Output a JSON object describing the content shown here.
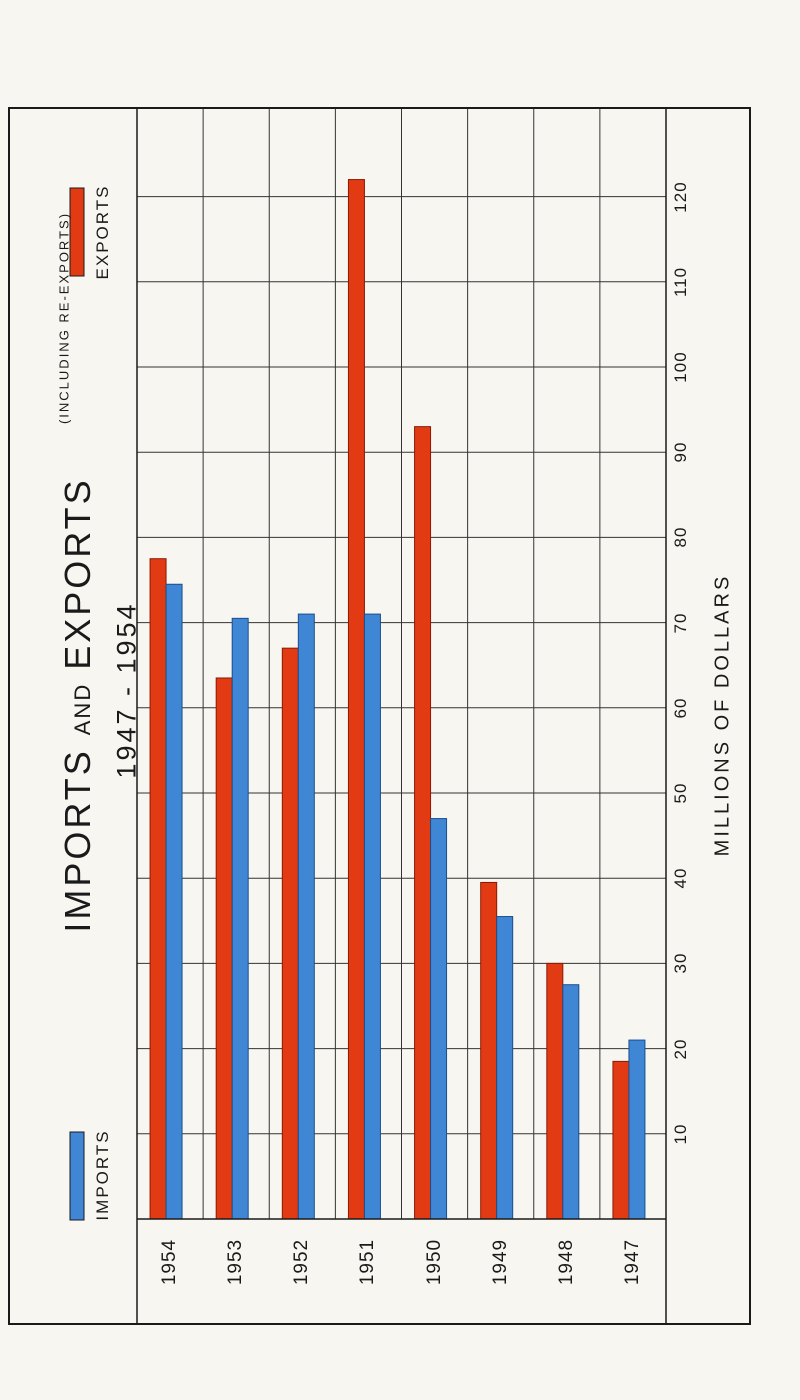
{
  "chart_data": {
    "type": "bar",
    "orientation": "horizontal",
    "title": {
      "main_a": "IMPORTS",
      "and": "AND",
      "main_b": "EXPORTS",
      "note": "(INCLUDING RE-EXPORTS)"
    },
    "subtitle": "1947 - 1954",
    "xlabel": "MILLIONS OF DOLLARS",
    "xlim": [
      0,
      125
    ],
    "ticks": [
      10,
      20,
      30,
      40,
      50,
      60,
      70,
      80,
      90,
      100,
      110,
      120
    ],
    "categories": [
      "1954",
      "1953",
      "1952",
      "1951",
      "1950",
      "1949",
      "1948",
      "1947"
    ],
    "series": [
      {
        "name": "EXPORTS",
        "color": "#e23b13",
        "values": [
          77.5,
          63.5,
          67,
          122,
          93,
          39.5,
          30,
          18.5
        ]
      },
      {
        "name": "IMPORTS",
        "color": "#3f86d4",
        "values": [
          74.5,
          70.5,
          71,
          71,
          47,
          35.5,
          27.5,
          21
        ]
      }
    ],
    "grid": true,
    "legend": "left"
  }
}
